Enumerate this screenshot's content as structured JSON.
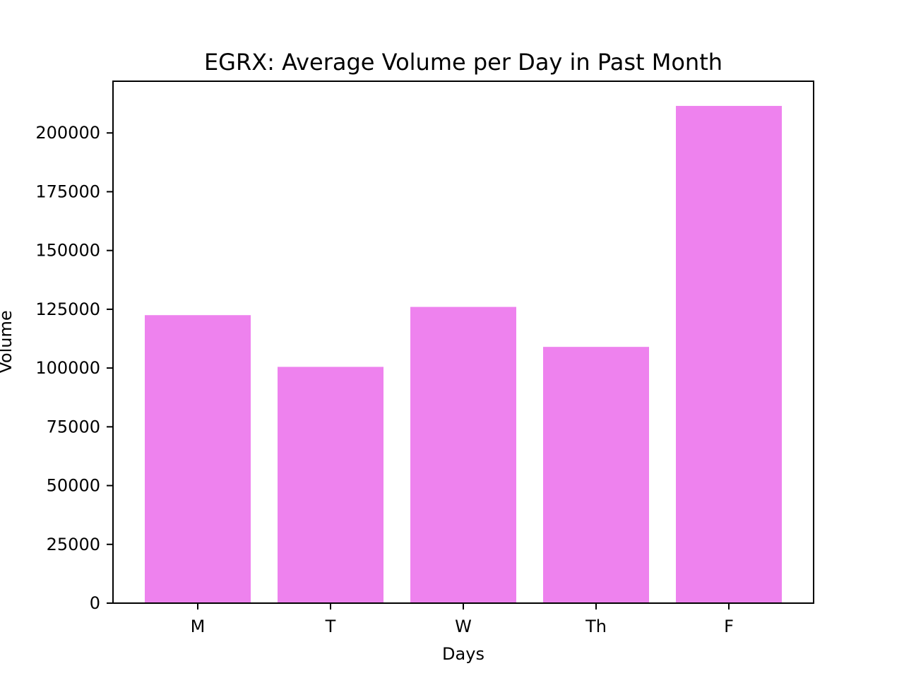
{
  "chart_data": {
    "type": "bar",
    "title": "EGRX: Average Volume per Day in Past Month",
    "xlabel": "Days",
    "ylabel": "Volume",
    "categories": [
      "M",
      "T",
      "W",
      "Th",
      "F"
    ],
    "values": [
      122500,
      100500,
      126000,
      109000,
      211500
    ],
    "ylim": [
      0,
      222000
    ],
    "yticks": [
      0,
      25000,
      50000,
      75000,
      100000,
      125000,
      150000,
      175000,
      200000
    ],
    "ytick_labels": [
      "0",
      "25000",
      "50000",
      "75000",
      "100000",
      "125000",
      "150000",
      "175000",
      "200000"
    ],
    "grid": false,
    "bar_color": "#ee82ee"
  }
}
